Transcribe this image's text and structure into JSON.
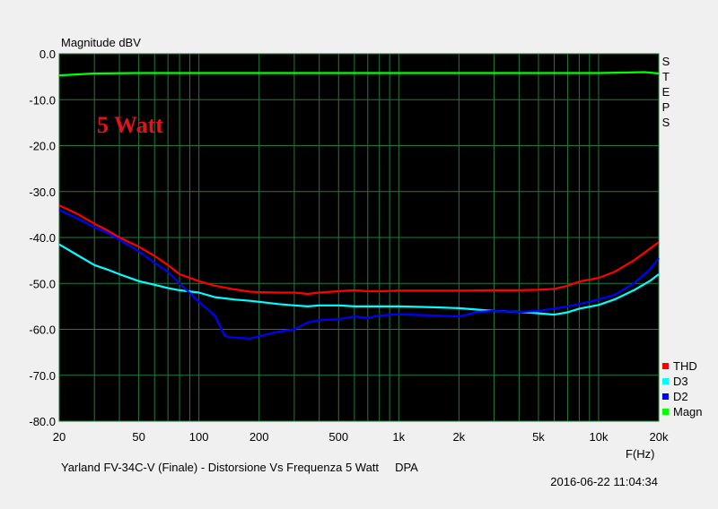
{
  "chart_data": {
    "type": "line",
    "ylabel": "Magnitude dBV",
    "xlabel": "F(Hz)",
    "annotation": "5 Watt",
    "right_label": "STEPS",
    "footer_title": "Yarland FV-34C-V (Finale) - Distorsione Vs Frequenza 5 Watt     DPA",
    "timestamp": "2016-06-22 11:04:34",
    "x_scale": "log",
    "xlim": [
      20,
      20000
    ],
    "ylim": [
      -80,
      0
    ],
    "grid": true,
    "legend_position": "bottom-right",
    "x_ticks": [
      {
        "value": 20,
        "label": "20"
      },
      {
        "value": 50,
        "label": "50"
      },
      {
        "value": 100,
        "label": "100"
      },
      {
        "value": 200,
        "label": "200"
      },
      {
        "value": 500,
        "label": "500"
      },
      {
        "value": 1000,
        "label": "1k"
      },
      {
        "value": 2000,
        "label": "2k"
      },
      {
        "value": 5000,
        "label": "5k"
      },
      {
        "value": 10000,
        "label": "10k"
      },
      {
        "value": 20000,
        "label": "20k"
      }
    ],
    "y_ticks": [
      {
        "value": 0,
        "label": "0.0"
      },
      {
        "value": -10,
        "label": "-10.0"
      },
      {
        "value": -20,
        "label": "-20.0"
      },
      {
        "value": -30,
        "label": "-30.0"
      },
      {
        "value": -40,
        "label": "-40.0"
      },
      {
        "value": -50,
        "label": "-50.0"
      },
      {
        "value": -60,
        "label": "-60.0"
      },
      {
        "value": -70,
        "label": "-70.0"
      },
      {
        "value": -80,
        "label": "-80.0"
      }
    ],
    "series": [
      {
        "name": "THD",
        "color": "#ff0000",
        "points": [
          [
            20,
            -33
          ],
          [
            25,
            -35
          ],
          [
            30,
            -37
          ],
          [
            35,
            -38.5
          ],
          [
            40,
            -40
          ],
          [
            50,
            -42
          ],
          [
            60,
            -44
          ],
          [
            70,
            -46
          ],
          [
            80,
            -48
          ],
          [
            100,
            -49.5
          ],
          [
            120,
            -50.5
          ],
          [
            150,
            -51.3
          ],
          [
            180,
            -51.8
          ],
          [
            200,
            -51.9
          ],
          [
            250,
            -52
          ],
          [
            300,
            -52
          ],
          [
            350,
            -52.3
          ],
          [
            400,
            -52
          ],
          [
            500,
            -51.7
          ],
          [
            600,
            -51.5
          ],
          [
            700,
            -51.7
          ],
          [
            800,
            -51.7
          ],
          [
            1000,
            -51.6
          ],
          [
            1500,
            -51.6
          ],
          [
            2000,
            -51.6
          ],
          [
            3000,
            -51.5
          ],
          [
            4000,
            -51.5
          ],
          [
            5000,
            -51.4
          ],
          [
            6000,
            -51.2
          ],
          [
            7000,
            -50.5
          ],
          [
            8000,
            -49.6
          ],
          [
            9000,
            -49.2
          ],
          [
            10000,
            -48.8
          ],
          [
            12000,
            -47.5
          ],
          [
            15000,
            -45
          ],
          [
            18000,
            -42.5
          ],
          [
            20000,
            -41
          ]
        ]
      },
      {
        "name": "D3",
        "color": "#00ffff",
        "points": [
          [
            20,
            -41.5
          ],
          [
            25,
            -44
          ],
          [
            30,
            -46
          ],
          [
            35,
            -47
          ],
          [
            40,
            -48
          ],
          [
            50,
            -49.5
          ],
          [
            60,
            -50.3
          ],
          [
            70,
            -51
          ],
          [
            80,
            -51.5
          ],
          [
            100,
            -52
          ],
          [
            120,
            -53
          ],
          [
            150,
            -53.5
          ],
          [
            180,
            -53.8
          ],
          [
            200,
            -54
          ],
          [
            250,
            -54.5
          ],
          [
            300,
            -54.8
          ],
          [
            350,
            -55
          ],
          [
            400,
            -54.8
          ],
          [
            500,
            -54.8
          ],
          [
            600,
            -55
          ],
          [
            700,
            -55
          ],
          [
            800,
            -55
          ],
          [
            1000,
            -55
          ],
          [
            1500,
            -55.2
          ],
          [
            2000,
            -55.4
          ],
          [
            3000,
            -56
          ],
          [
            4000,
            -56.2
          ],
          [
            5000,
            -56.5
          ],
          [
            6000,
            -56.8
          ],
          [
            7000,
            -56.3
          ],
          [
            8000,
            -55.5
          ],
          [
            10000,
            -54.7
          ],
          [
            12000,
            -53.5
          ],
          [
            15000,
            -51.5
          ],
          [
            18000,
            -49.5
          ],
          [
            20000,
            -48
          ]
        ]
      },
      {
        "name": "D2",
        "color": "#0000ff",
        "points": [
          [
            20,
            -34
          ],
          [
            25,
            -36
          ],
          [
            30,
            -37.8
          ],
          [
            35,
            -39
          ],
          [
            40,
            -40.5
          ],
          [
            50,
            -43
          ],
          [
            60,
            -45.5
          ],
          [
            70,
            -47.5
          ],
          [
            80,
            -50
          ],
          [
            100,
            -54
          ],
          [
            120,
            -57
          ],
          [
            135,
            -61.5
          ],
          [
            150,
            -61.8
          ],
          [
            180,
            -62
          ],
          [
            200,
            -61.5
          ],
          [
            250,
            -60.5
          ],
          [
            300,
            -60
          ],
          [
            350,
            -58.5
          ],
          [
            400,
            -58
          ],
          [
            500,
            -57.8
          ],
          [
            600,
            -57.2
          ],
          [
            700,
            -57.5
          ],
          [
            800,
            -57
          ],
          [
            1000,
            -56.7
          ],
          [
            1500,
            -57
          ],
          [
            2000,
            -57.2
          ],
          [
            2500,
            -56.2
          ],
          [
            3000,
            -56
          ],
          [
            4000,
            -56.2
          ],
          [
            5000,
            -56
          ],
          [
            6000,
            -55.5
          ],
          [
            7000,
            -55
          ],
          [
            8000,
            -54.5
          ],
          [
            10000,
            -53.5
          ],
          [
            12000,
            -52.5
          ],
          [
            15000,
            -50
          ],
          [
            18000,
            -47
          ],
          [
            20000,
            -44.5
          ]
        ]
      },
      {
        "name": "Magn",
        "color": "#00ff00",
        "points": [
          [
            20,
            -4.7
          ],
          [
            30,
            -4.3
          ],
          [
            50,
            -4.2
          ],
          [
            100,
            -4.2
          ],
          [
            200,
            -4.2
          ],
          [
            500,
            -4.2
          ],
          [
            1000,
            -4.2
          ],
          [
            2000,
            -4.2
          ],
          [
            5000,
            -4.2
          ],
          [
            10000,
            -4.2
          ],
          [
            17000,
            -4.0
          ],
          [
            20000,
            -4.3
          ]
        ]
      }
    ]
  }
}
